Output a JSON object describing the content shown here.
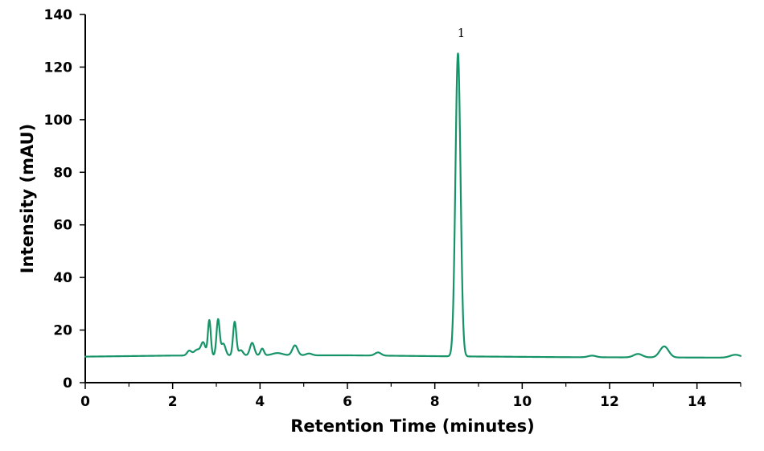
{
  "chart_data": {
    "type": "line",
    "title": "",
    "xlabel": "Retention Time (minutes)",
    "ylabel": "Intensity (mAU)",
    "xlim": [
      0,
      15
    ],
    "ylim": [
      0,
      140
    ],
    "x_ticks": [
      0,
      2,
      4,
      6,
      8,
      10,
      12,
      14
    ],
    "x_tick_labels": [
      "0",
      "2",
      "4",
      "6",
      "8",
      "10",
      "12",
      "14"
    ],
    "x_minor_ticks": [
      1,
      3,
      5,
      7,
      9,
      11,
      13,
      15
    ],
    "y_ticks": [
      0,
      20,
      40,
      60,
      80,
      100,
      120,
      140
    ],
    "y_tick_labels": [
      "0",
      "20",
      "40",
      "60",
      "80",
      "100",
      "120",
      "140"
    ],
    "grid": false,
    "legend": "none",
    "line_color": "#169467",
    "baseline": [
      [
        0,
        9.9
      ],
      [
        2.0,
        10.3
      ],
      [
        6.0,
        10.4
      ],
      [
        8.5,
        10.0
      ],
      [
        11.0,
        9.7
      ],
      [
        15.0,
        9.5
      ]
    ],
    "peaks": [
      {
        "x": 2.38,
        "height": 1.8,
        "width": 0.05
      },
      {
        "x": 2.56,
        "height": 2.2,
        "width": 0.07
      },
      {
        "x": 2.7,
        "height": 4.8,
        "width": 0.05
      },
      {
        "x": 2.84,
        "height": 13.4,
        "width": 0.033
      },
      {
        "x": 3.04,
        "height": 13.6,
        "width": 0.036
      },
      {
        "x": 3.16,
        "height": 4.5,
        "width": 0.05
      },
      {
        "x": 3.42,
        "height": 12.8,
        "width": 0.037
      },
      {
        "x": 3.56,
        "height": 2.0,
        "width": 0.05
      },
      {
        "x": 3.82,
        "height": 4.8,
        "width": 0.05
      },
      {
        "x": 4.05,
        "height": 2.6,
        "width": 0.04
      },
      {
        "x": 4.4,
        "height": 0.9,
        "width": 0.12
      },
      {
        "x": 4.8,
        "height": 3.8,
        "width": 0.06
      },
      {
        "x": 5.12,
        "height": 0.7,
        "width": 0.07
      },
      {
        "x": 6.7,
        "height": 1.2,
        "width": 0.07
      },
      {
        "x": 8.53,
        "height": 115.2,
        "width": 0.058
      },
      {
        "x": 11.6,
        "height": 0.6,
        "width": 0.09
      },
      {
        "x": 12.65,
        "height": 1.3,
        "width": 0.1
      },
      {
        "x": 13.25,
        "height": 4.2,
        "width": 0.1
      },
      {
        "x": 14.88,
        "height": 1.1,
        "width": 0.12
      }
    ],
    "annotations": [
      {
        "text": "1",
        "x": 8.53,
        "y": 133
      }
    ]
  }
}
